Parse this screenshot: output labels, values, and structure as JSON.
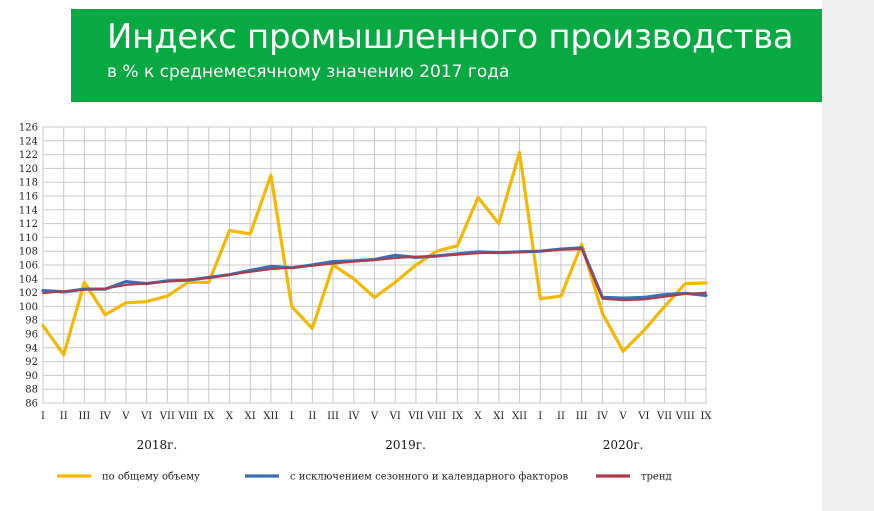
{
  "header": {
    "title": "Индекс промышленного производства",
    "subtitle": "в % к среднемесячному значению 2017 года"
  },
  "colors": {
    "banner": "#08a843",
    "series_total": "#f5b800",
    "series_adjusted": "#3a6fb8",
    "series_trend": "#b03a4a"
  },
  "chart_data": {
    "type": "line",
    "x": [
      "I",
      "II",
      "III",
      "IV",
      "V",
      "VI",
      "VII",
      "VIII",
      "IX",
      "X",
      "XI",
      "XII",
      "I",
      "II",
      "III",
      "IV",
      "V",
      "VI",
      "VII",
      "VIII",
      "IX",
      "X",
      "XI",
      "XII",
      "I",
      "II",
      "III",
      "IV",
      "V",
      "VI",
      "VII",
      "VIII",
      "IX"
    ],
    "year_labels": [
      "2018г.",
      "2019г.",
      "2020г."
    ],
    "ylim": [
      86,
      126
    ],
    "yticks": [
      86,
      88,
      90,
      92,
      94,
      96,
      98,
      100,
      102,
      104,
      106,
      108,
      110,
      112,
      114,
      116,
      118,
      120,
      122,
      124,
      126
    ],
    "grid": true,
    "legend_position": "bottom",
    "series": [
      {
        "name": "по общему объему",
        "values": [
          97.2,
          93.0,
          103.5,
          98.8,
          100.5,
          100.7,
          101.5,
          103.5,
          103.5,
          111.0,
          110.5,
          119.0,
          100.0,
          96.8,
          106.0,
          104.0,
          101.3,
          103.5,
          106.0,
          108.0,
          108.8,
          115.8,
          112.0,
          122.3,
          101.1,
          101.5,
          109.0,
          99.0,
          93.5,
          96.5,
          100.0,
          103.3,
          103.4
        ]
      },
      {
        "name": "с исключением  сезонного  и календарного  факторов",
        "values": [
          102.3,
          102.1,
          102.5,
          102.5,
          103.6,
          103.3,
          103.7,
          103.8,
          104.2,
          104.6,
          105.2,
          105.8,
          105.6,
          106.0,
          106.5,
          106.6,
          106.8,
          107.4,
          107.1,
          107.3,
          107.6,
          107.9,
          107.8,
          107.9,
          108.0,
          108.3,
          108.5,
          101.3,
          101.2,
          101.3,
          101.7,
          101.9,
          101.6
        ]
      },
      {
        "name": "тренд",
        "values": [
          101.9,
          102.2,
          102.4,
          102.6,
          103.1,
          103.3,
          103.6,
          103.9,
          104.1,
          104.6,
          105.0,
          105.4,
          105.6,
          105.9,
          106.2,
          106.5,
          106.7,
          107.0,
          107.2,
          107.3,
          107.5,
          107.7,
          107.8,
          107.9,
          108.0,
          108.2,
          108.3,
          101.1,
          100.9,
          101.0,
          101.4,
          101.8,
          102.0
        ]
      }
    ]
  }
}
